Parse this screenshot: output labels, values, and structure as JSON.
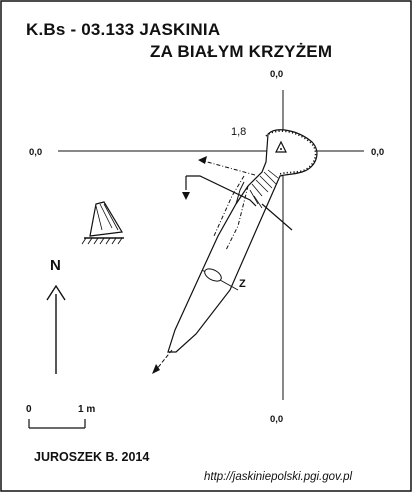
{
  "title": {
    "line1": "K.Bs - 03.133  JASKINIA",
    "line2": "ZA BIAŁYM KRZYŻEM"
  },
  "crosshair": {
    "top": "0,0",
    "left": "0,0",
    "right": "0,0",
    "bottom": "0,0"
  },
  "elevation_label": "1,8",
  "section_label": "Z",
  "north_label": "N",
  "scale": {
    "start": "0",
    "end": "1 m"
  },
  "author": "JUROSZEK B. 2014",
  "source_url": "http://jaskiniepolski.pgi.gov.pl",
  "colors": {
    "ink": "#111111",
    "background": "#ffffff"
  }
}
